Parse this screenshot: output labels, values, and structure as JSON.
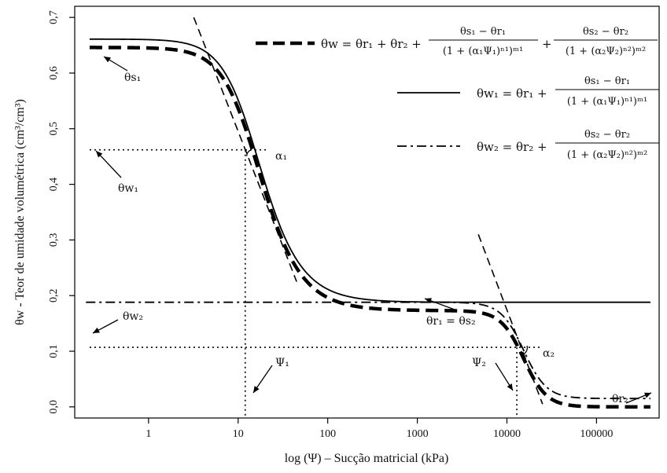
{
  "chart_data": {
    "type": "line",
    "xlabel": "log (Ψ) – Sucção matricial (kPa)",
    "ylabel": "θw - Teor de umidade volumétrica (cm³/cm³)",
    "x_scale": "log",
    "xlim": [
      0.15,
      500000
    ],
    "ylim": [
      -0.02,
      0.72
    ],
    "x_ticks": [
      1,
      10,
      100,
      1000,
      10000,
      100000
    ],
    "x_tick_labels": [
      "1",
      "10",
      "100",
      "1000",
      "10000",
      "100000"
    ],
    "y_ticks": [
      0.0,
      0.1,
      0.2,
      0.3,
      0.4,
      0.5,
      0.6,
      0.7
    ],
    "y_tick_labels": [
      "0,0",
      "0,1",
      "0,2",
      "0,3",
      "0,4",
      "0,5",
      "0,6",
      "0,7"
    ],
    "grid": false,
    "legend_position": "top-right",
    "params": {
      "theta_s1": 0.646,
      "theta_r1": 0.173,
      "alpha1": 0.07,
      "n1": 2.2,
      "m1": 0.7,
      "theta_s2": 0.188,
      "theta_r2": 0.015,
      "alpha2": 6.5e-05,
      "n2": 3.4,
      "m2": 1.0,
      "x_min": 0.22,
      "x_max": 400000
    },
    "series": [
      {
        "key": "bimodal",
        "style": "heavy-dashed"
      },
      {
        "key": "mode1",
        "style": "solid"
      },
      {
        "key": "mode2",
        "style": "dash-dot"
      }
    ],
    "tangents": [
      {
        "x": [
          3.2,
          45
        ],
        "y": [
          0.7,
          0.225
        ]
      },
      {
        "x": [
          4800,
          25000
        ],
        "y": [
          0.31,
          0.005
        ]
      }
    ],
    "guides": {
      "theta_w1": 0.462,
      "theta_w2": 0.107,
      "psi1": 12.0,
      "psi2": 12900
    },
    "annotations": {
      "theta_s1": "θs₁",
      "theta_w1": "θw₁",
      "theta_w2": "θw₂",
      "theta_r1_eq_s2": "θr₁ = θs₂",
      "theta_r2": "θr₂",
      "alpha1": "α₁",
      "alpha2": "α₂",
      "psi1": "Ψ₁",
      "psi2": "Ψ₂"
    },
    "legend": {
      "eq1_lhs": "θw = θr₁ + θr₂ +",
      "eq1_num1": "θs₁ − θr₁",
      "eq1_den1": "(1 + (α₁Ψ₁)ⁿ¹)ᵐ¹",
      "plus": "+",
      "eq1_num2": "θs₂ − θr₂",
      "eq1_den2": "(1 + (α₂Ψ₂)ⁿ²)ᵐ²",
      "eq2_lhs": "θw₁ = θr₁ +",
      "eq2_num": "θs₁ − θr₁",
      "eq2_den": "(1 + (α₁Ψ₁)ⁿ¹)ᵐ¹",
      "eq3_lhs": "θw₂ = θr₂ +",
      "eq3_num": "θs₂ − θr₂",
      "eq3_den": "(1 + (α₂Ψ₂)ⁿ²)ᵐ²"
    }
  }
}
